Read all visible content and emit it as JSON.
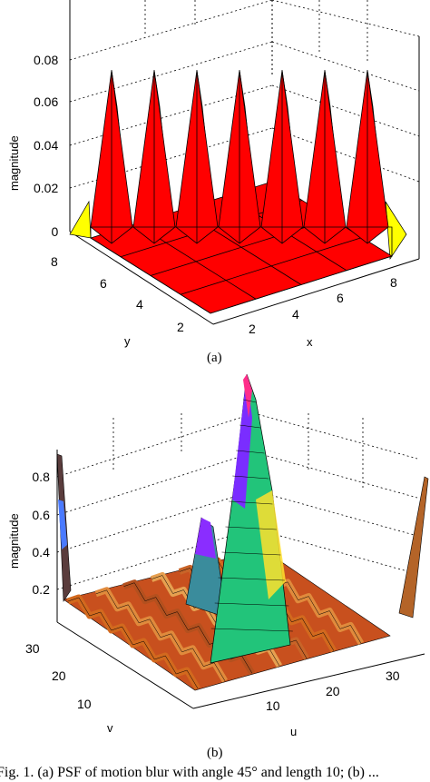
{
  "figure": {
    "panel_a": {
      "sublabel": "(a)",
      "zlabel": "magnitude",
      "xlabel": "x",
      "ylabel": "y",
      "z_ticks": [
        "0",
        "0.02",
        "0.04",
        "0.06",
        "0.08"
      ],
      "x_ticks": [
        "2",
        "4",
        "6",
        "8"
      ],
      "y_ticks": [
        "2",
        "4",
        "6",
        "8"
      ],
      "colors": {
        "surface": "#ff0000",
        "highlight": "#66ff33",
        "edge": "#ffff00"
      }
    },
    "panel_b": {
      "sublabel": "(b)",
      "zlabel": "magnitude",
      "xlabel": "u",
      "ylabel": "v",
      "z_ticks": [
        "0.2",
        "0.4",
        "0.6",
        "0.8"
      ],
      "x_ticks": [
        "10",
        "20",
        "30"
      ],
      "y_ticks": [
        "10",
        "20",
        "30"
      ],
      "colormap": "hsv"
    },
    "caption": "Fig. 1.  (a) PSF of motion blur with angle 45° and length 10; (b) ..."
  },
  "chart_data": [
    {
      "type": "surface",
      "panel": "a",
      "title": "",
      "xlabel": "x",
      "ylabel": "y",
      "zlabel": "magnitude",
      "xlim": [
        1,
        9
      ],
      "ylim": [
        1,
        9
      ],
      "zlim": [
        0,
        0.09
      ],
      "description_values": {
        "peak_count": 7,
        "peak_magnitude": 0.085,
        "base_magnitude": 0
      },
      "peaks": [
        0.085,
        0.085,
        0.085,
        0.085,
        0.085,
        0.085,
        0.085
      ]
    },
    {
      "type": "surface",
      "panel": "b",
      "title": "",
      "xlabel": "u",
      "ylabel": "v",
      "zlabel": "magnitude",
      "xlim": [
        1,
        33
      ],
      "ylim": [
        1,
        33
      ],
      "zlim": [
        0,
        1
      ],
      "center_peak": 1.0,
      "secondary_peak": 0.6,
      "corner_peak": 0.85,
      "ripple_level": 0.2
    }
  ]
}
